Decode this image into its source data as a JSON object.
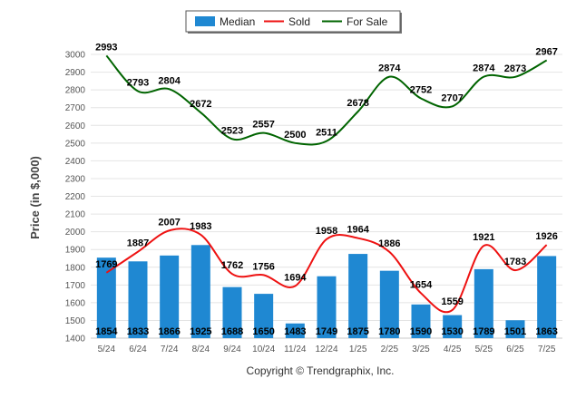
{
  "chart_data": {
    "type": "bar",
    "categories": [
      "5/24",
      "6/24",
      "7/24",
      "8/24",
      "9/24",
      "10/24",
      "11/24",
      "12/24",
      "1/25",
      "2/25",
      "3/25",
      "4/25",
      "5/25",
      "6/25",
      "7/25"
    ],
    "series": [
      {
        "name": "Median",
        "type": "bar",
        "color": "#1f88d2",
        "values": [
          1854,
          1833,
          1866,
          1925,
          1688,
          1650,
          1483,
          1749,
          1875,
          1780,
          1590,
          1530,
          1789,
          1501,
          1863
        ]
      },
      {
        "name": "Sold",
        "type": "line",
        "color": "#ee1111",
        "values": [
          1769,
          1887,
          2007,
          1983,
          1762,
          1756,
          1694,
          1958,
          1964,
          1886,
          1654,
          1559,
          1921,
          1783,
          1926
        ]
      },
      {
        "name": "For Sale",
        "type": "line",
        "color": "#006400",
        "values": [
          2993,
          2793,
          2804,
          2672,
          2523,
          2557,
          2500,
          2511,
          2678,
          2874,
          2752,
          2707,
          2874,
          2873,
          2967
        ]
      }
    ],
    "yticks": [
      1400,
      1500,
      1600,
      1700,
      1800,
      1900,
      2000,
      2100,
      2200,
      2300,
      2400,
      2500,
      2600,
      2700,
      2800,
      2900,
      3000
    ],
    "ylim": [
      1400,
      3000
    ],
    "ylabel": "Price (in $,000)",
    "xlabel": "",
    "grid": true,
    "legend": "top-center",
    "credit": "Copyright © Trendgraphix, Inc."
  }
}
